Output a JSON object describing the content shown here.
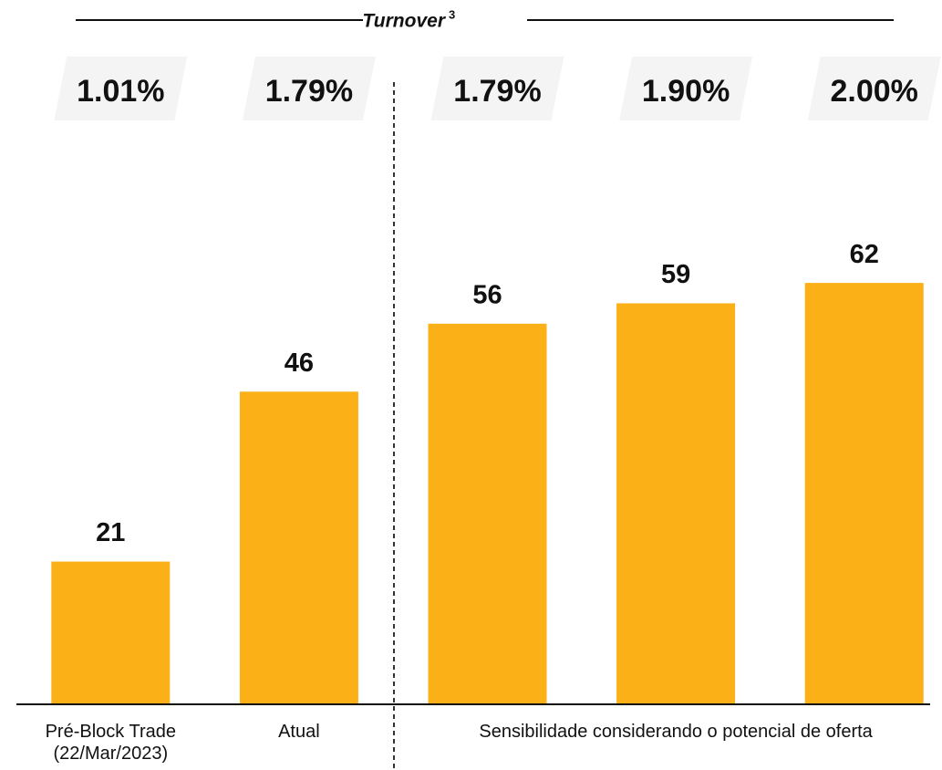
{
  "chart_data": {
    "type": "bar",
    "header": {
      "title": "Turnover",
      "superscript": "3"
    },
    "categories": [
      "Pré-Block Trade (22/Mar/2023)",
      "Atual",
      null,
      null,
      null
    ],
    "group_label": "Sensibilidade considerando o potencial de oferta",
    "values": [
      21,
      46,
      56,
      59,
      62
    ],
    "color": "#fbb017",
    "ylim": [
      0,
      100
    ],
    "turnover": {
      "values": [
        1.01,
        1.79,
        1.79,
        1.9,
        2.0
      ],
      "value_labels": [
        "1.01%",
        "1.79%",
        "1.79%",
        "1.90%",
        "2.00%"
      ]
    }
  }
}
